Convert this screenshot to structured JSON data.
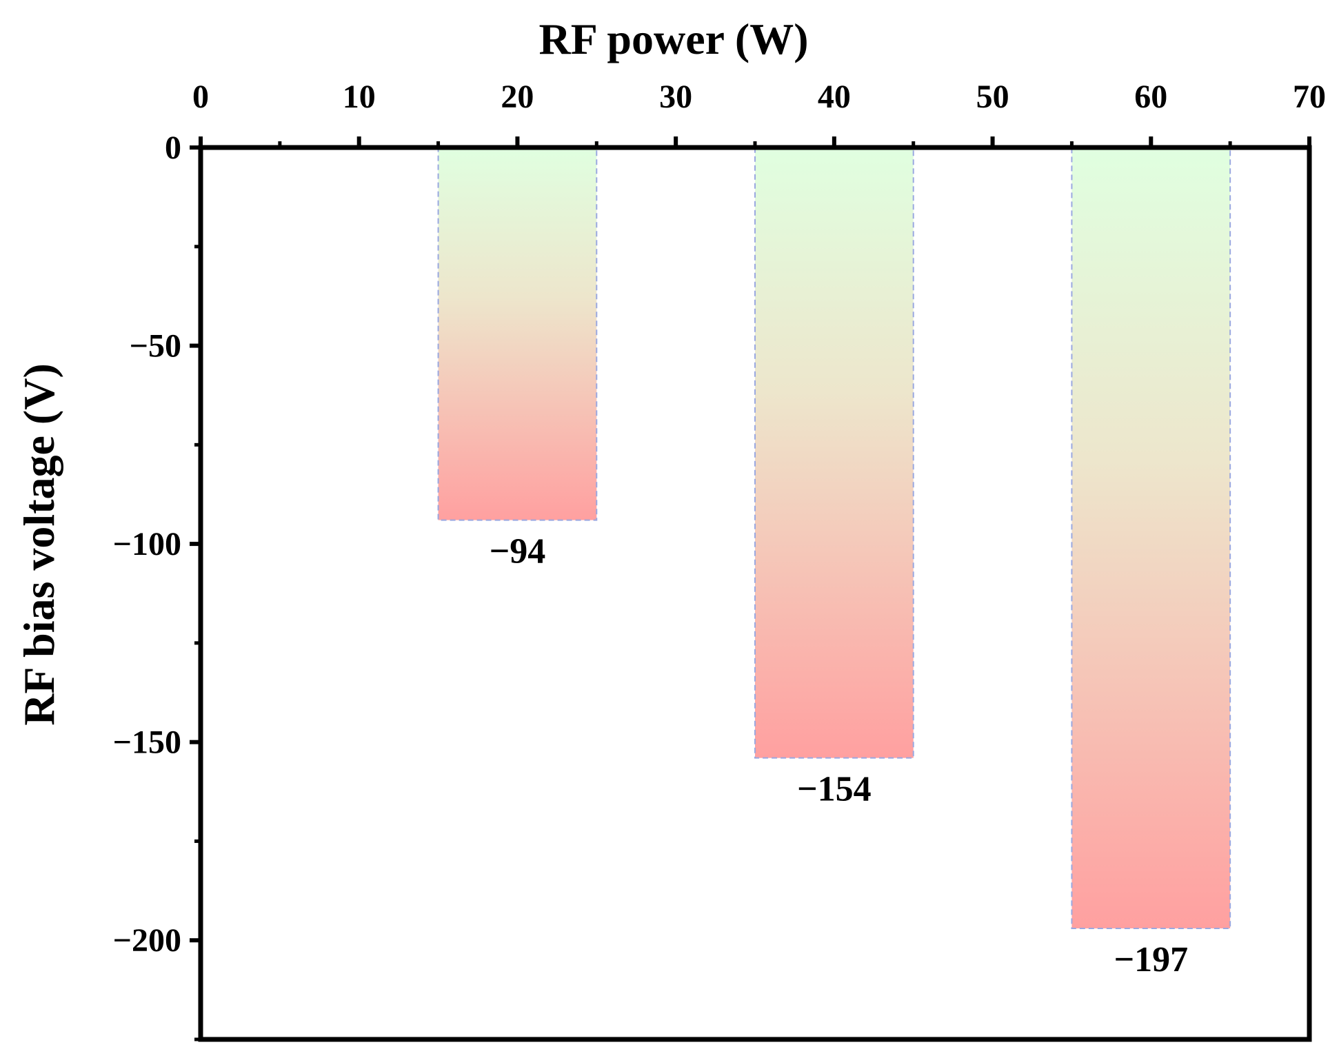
{
  "chart_data": {
    "type": "bar",
    "xlabel": "RF power (W)",
    "ylabel": "RF bias voltage (V)",
    "x": [
      20,
      40,
      60
    ],
    "values": [
      -94,
      -154,
      -197
    ],
    "data_labels": [
      "−94",
      "−154",
      "−197"
    ],
    "bar_width": 10,
    "xlim": [
      0,
      70
    ],
    "ylim": [
      -225,
      0
    ],
    "xticks": [
      0,
      10,
      20,
      30,
      40,
      50,
      60,
      70
    ],
    "xtick_labels": [
      "0",
      "10",
      "20",
      "30",
      "40",
      "50",
      "60",
      "70"
    ],
    "yticks": [
      0,
      -50,
      -100,
      -150,
      -200
    ],
    "ytick_labels": [
      "0",
      "−50",
      "−100",
      "−150",
      "−200"
    ],
    "x_axis_position": "top",
    "grid": false,
    "colors": {
      "bar_top": "#e0ffe0",
      "bar_mid": "#ede0c8",
      "bar_bottom": "#ffa0a0",
      "bar_outline": "#9aa8e0"
    }
  }
}
